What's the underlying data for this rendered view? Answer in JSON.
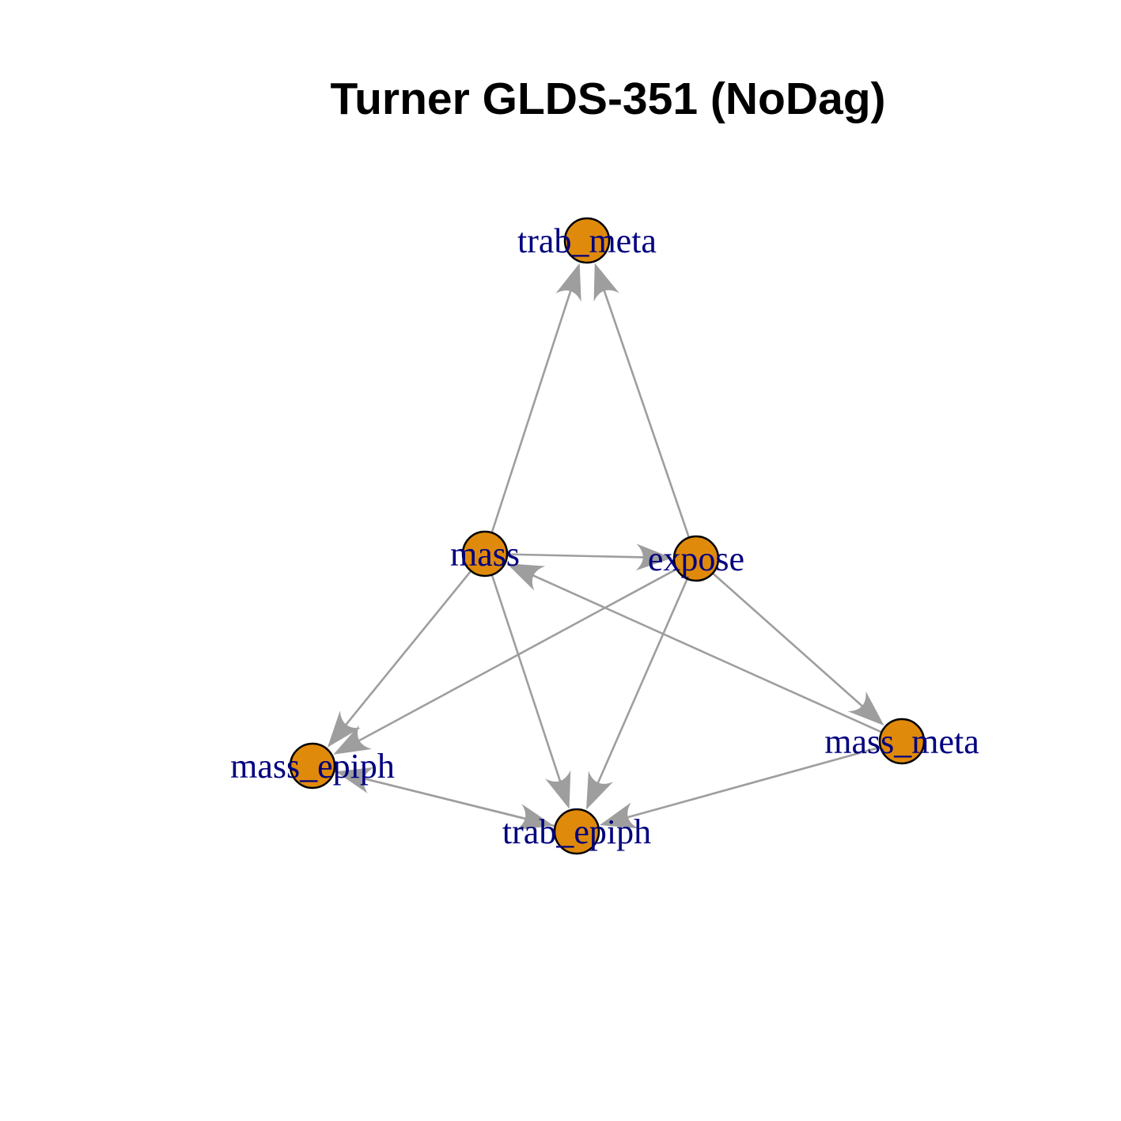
{
  "title": "Turner GLDS-351 (NoDag)",
  "colors": {
    "node_fill": "#E08A0B",
    "node_stroke": "#000000",
    "edge": "#9E9E9E",
    "label": "#00007F"
  },
  "nodes": [
    {
      "id": "trab_meta",
      "label": "trab_meta"
    },
    {
      "id": "mass",
      "label": "mass"
    },
    {
      "id": "expose",
      "label": "expose"
    },
    {
      "id": "mass_epiph",
      "label": "mass_epiph"
    },
    {
      "id": "trab_epiph",
      "label": "trab_epiph"
    },
    {
      "id": "mass_meta",
      "label": "mass_meta"
    }
  ],
  "edges": [
    {
      "from": "mass",
      "to": "trab_meta"
    },
    {
      "from": "expose",
      "to": "trab_meta"
    },
    {
      "from": "mass",
      "to": "expose"
    },
    {
      "from": "mass_meta",
      "to": "mass"
    },
    {
      "from": "mass",
      "to": "mass_epiph"
    },
    {
      "from": "mass",
      "to": "trab_epiph"
    },
    {
      "from": "expose",
      "to": "mass_epiph"
    },
    {
      "from": "expose",
      "to": "trab_epiph"
    },
    {
      "from": "expose",
      "to": "mass_meta"
    },
    {
      "from": "mass_meta",
      "to": "trab_epiph"
    },
    {
      "from": "mass_epiph",
      "to": "trab_epiph"
    },
    {
      "from": "trab_epiph",
      "to": "mass_epiph"
    }
  ]
}
